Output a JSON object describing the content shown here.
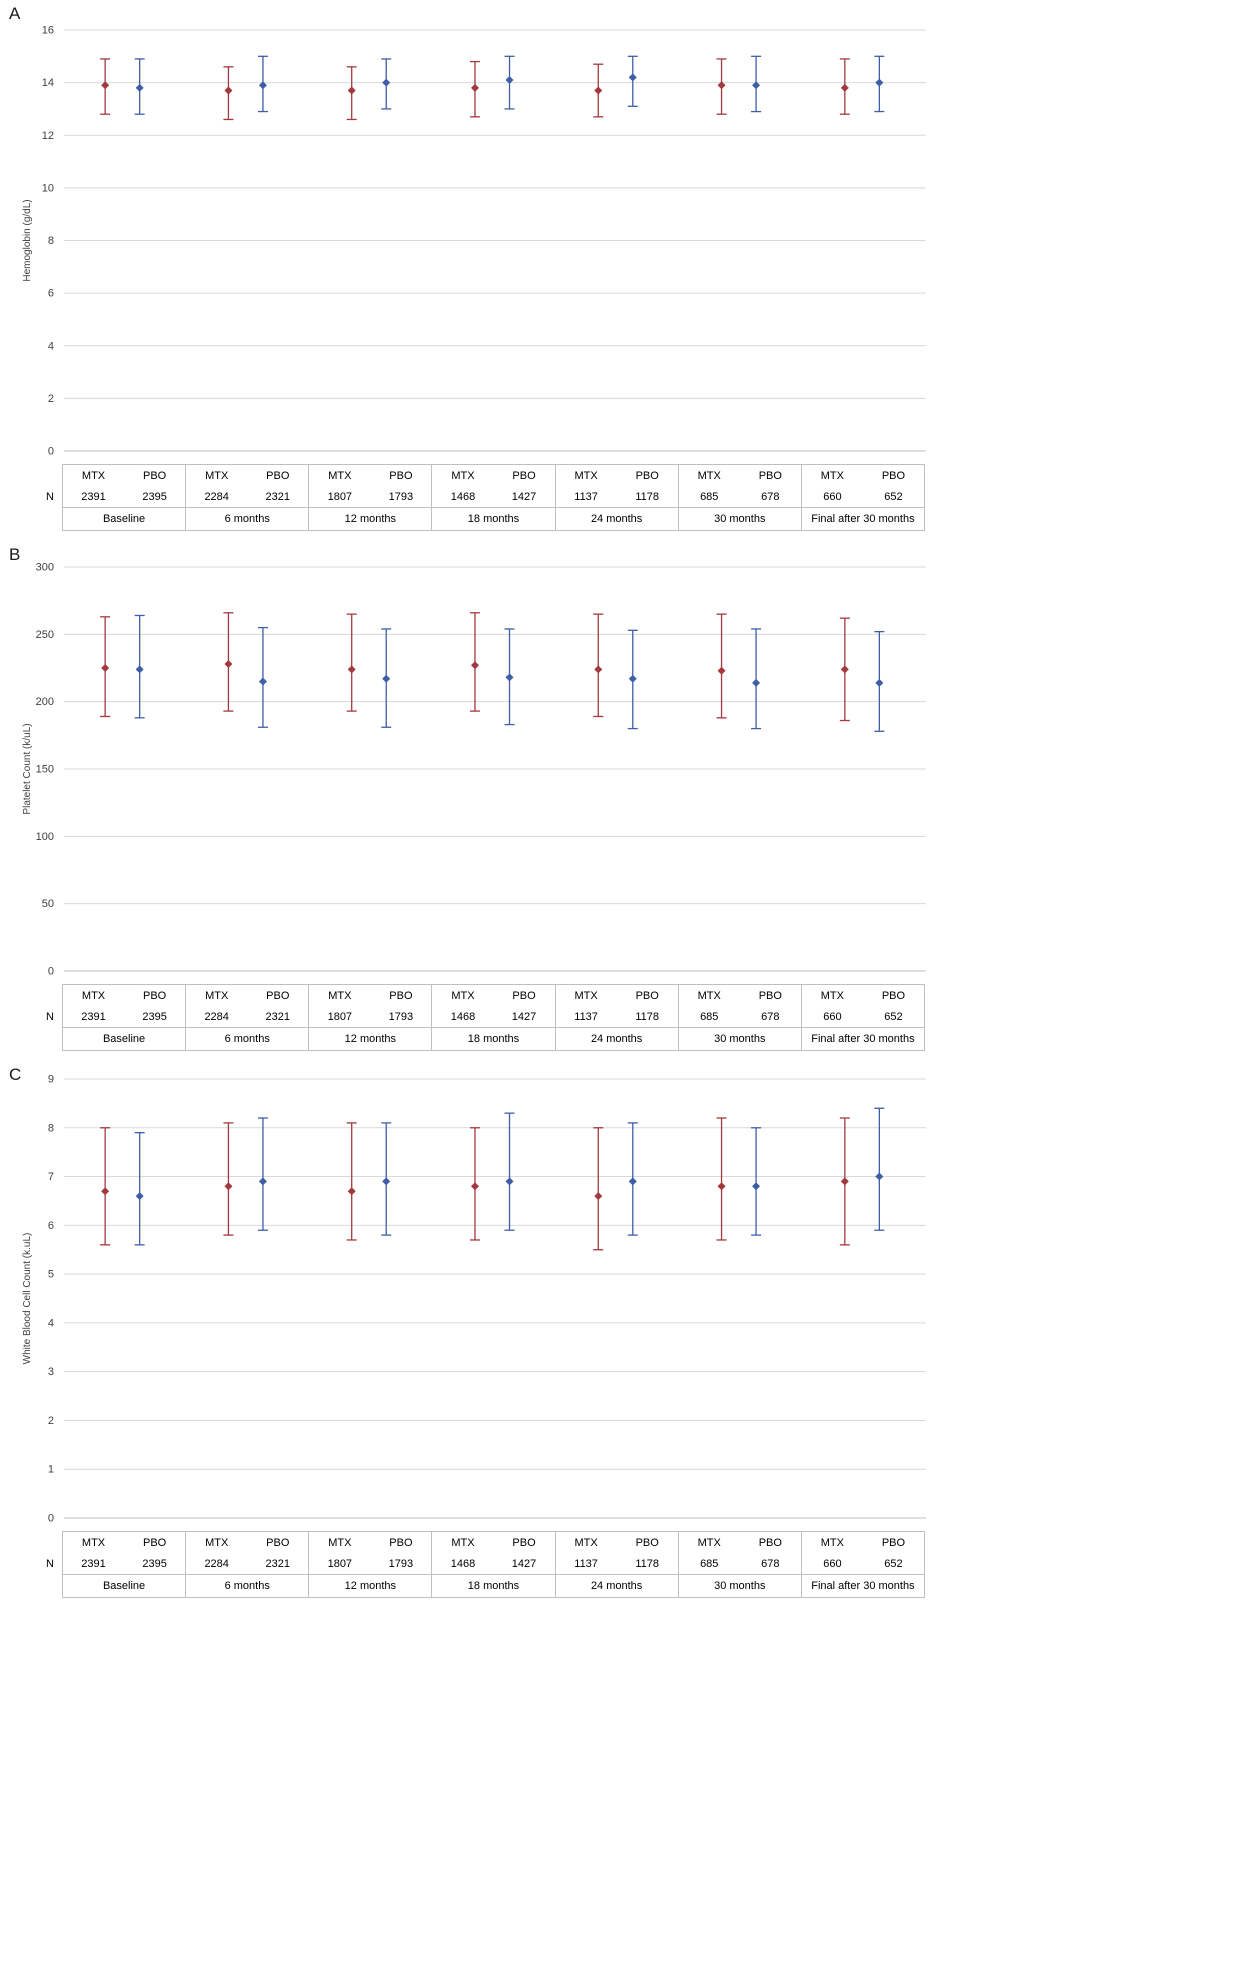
{
  "page": {
    "background": "#FFFFFF"
  },
  "groups": [
    "Baseline",
    "6 months",
    "12 months",
    "18 months",
    "24 months",
    "30 months",
    "Final after 30 months"
  ],
  "n_table": {
    "row_label": "N",
    "col_headers": [
      "MTX",
      "PBO"
    ],
    "mtx": [
      "2391",
      "2284",
      "1807",
      "1468",
      "1137",
      "685",
      "660"
    ],
    "pbo": [
      "2395",
      "2321",
      "1793",
      "1427",
      "1178",
      "678",
      "652"
    ]
  },
  "colors": {
    "mtx": "#A3393F",
    "pbo": "#3F5EA8",
    "gridline": "#D9D9D9",
    "axis_line": "#BFBFBF",
    "text": "#404040"
  },
  "chart_data": [
    {
      "type": "errorbar",
      "panel_label": "A",
      "ylabel": "Hemoglobin (g/dL)",
      "ylim": [
        0,
        16
      ],
      "ytick_step": 2,
      "categories": [
        "Baseline",
        "6 months",
        "12 months",
        "18 months",
        "24 months",
        "30 months",
        "Final after 30 months"
      ],
      "legend": "none",
      "grid": true,
      "series": [
        {
          "name": "MTX",
          "color": "#A3393F",
          "points": [
            {
              "mean": 13.9,
              "lo": 12.8,
              "hi": 14.9
            },
            {
              "mean": 13.7,
              "lo": 12.6,
              "hi": 14.6
            },
            {
              "mean": 13.7,
              "lo": 12.6,
              "hi": 14.6
            },
            {
              "mean": 13.8,
              "lo": 12.7,
              "hi": 14.8
            },
            {
              "mean": 13.7,
              "lo": 12.7,
              "hi": 14.7
            },
            {
              "mean": 13.9,
              "lo": 12.8,
              "hi": 14.9
            },
            {
              "mean": 13.8,
              "lo": 12.8,
              "hi": 14.9
            }
          ]
        },
        {
          "name": "PBO",
          "color": "#3F5EA8",
          "points": [
            {
              "mean": 13.8,
              "lo": 12.8,
              "hi": 14.9
            },
            {
              "mean": 13.9,
              "lo": 12.9,
              "hi": 15.0
            },
            {
              "mean": 14.0,
              "lo": 13.0,
              "hi": 14.9
            },
            {
              "mean": 14.1,
              "lo": 13.0,
              "hi": 15.0
            },
            {
              "mean": 14.2,
              "lo": 13.1,
              "hi": 15.0
            },
            {
              "mean": 13.9,
              "lo": 12.9,
              "hi": 15.0
            },
            {
              "mean": 14.0,
              "lo": 12.9,
              "hi": 15.0
            }
          ]
        }
      ]
    },
    {
      "type": "errorbar",
      "panel_label": "B",
      "ylabel": "Platelet Count (k/uL)",
      "ylim": [
        0,
        300
      ],
      "ytick_step": 50,
      "categories": [
        "Baseline",
        "6 months",
        "12 months",
        "18 months",
        "24 months",
        "30 months",
        "Final after 30 months"
      ],
      "legend": "none",
      "grid": true,
      "series": [
        {
          "name": "MTX",
          "color": "#A3393F",
          "points": [
            {
              "mean": 225,
              "lo": 189,
              "hi": 263
            },
            {
              "mean": 228,
              "lo": 193,
              "hi": 266
            },
            {
              "mean": 224,
              "lo": 193,
              "hi": 265
            },
            {
              "mean": 227,
              "lo": 193,
              "hi": 266
            },
            {
              "mean": 224,
              "lo": 189,
              "hi": 265
            },
            {
              "mean": 223,
              "lo": 188,
              "hi": 265
            },
            {
              "mean": 224,
              "lo": 186,
              "hi": 262
            }
          ]
        },
        {
          "name": "PBO",
          "color": "#3F5EA8",
          "points": [
            {
              "mean": 224,
              "lo": 188,
              "hi": 264
            },
            {
              "mean": 215,
              "lo": 181,
              "hi": 255
            },
            {
              "mean": 217,
              "lo": 181,
              "hi": 254
            },
            {
              "mean": 218,
              "lo": 183,
              "hi": 254
            },
            {
              "mean": 217,
              "lo": 180,
              "hi": 253
            },
            {
              "mean": 214,
              "lo": 180,
              "hi": 254
            },
            {
              "mean": 214,
              "lo": 178,
              "hi": 252
            }
          ]
        }
      ]
    },
    {
      "type": "errorbar",
      "panel_label": "C",
      "ylabel": "White Blood Cell Count (k.uL)",
      "ylim": [
        0,
        9
      ],
      "ytick_step": 1,
      "categories": [
        "Baseline",
        "6 months",
        "12 months",
        "18 months",
        "24 months",
        "30 months",
        "Final after 30 months"
      ],
      "legend": "none",
      "grid": true,
      "series": [
        {
          "name": "MTX",
          "color": "#A3393F",
          "points": [
            {
              "mean": 6.7,
              "lo": 5.6,
              "hi": 8.0
            },
            {
              "mean": 6.8,
              "lo": 5.8,
              "hi": 8.1
            },
            {
              "mean": 6.7,
              "lo": 5.7,
              "hi": 8.1
            },
            {
              "mean": 6.8,
              "lo": 5.7,
              "hi": 8.0
            },
            {
              "mean": 6.6,
              "lo": 5.5,
              "hi": 8.0
            },
            {
              "mean": 6.8,
              "lo": 5.7,
              "hi": 8.2
            },
            {
              "mean": 6.9,
              "lo": 5.6,
              "hi": 8.2
            }
          ]
        },
        {
          "name": "PBO",
          "color": "#3F5EA8",
          "points": [
            {
              "mean": 6.6,
              "lo": 5.6,
              "hi": 7.9
            },
            {
              "mean": 6.9,
              "lo": 5.9,
              "hi": 8.2
            },
            {
              "mean": 6.9,
              "lo": 5.8,
              "hi": 8.1
            },
            {
              "mean": 6.9,
              "lo": 5.9,
              "hi": 8.3
            },
            {
              "mean": 6.9,
              "lo": 5.8,
              "hi": 8.1
            },
            {
              "mean": 6.8,
              "lo": 5.8,
              "hi": 8.0
            },
            {
              "mean": 7.0,
              "lo": 5.9,
              "hi": 8.4
            }
          ]
        }
      ]
    }
  ]
}
